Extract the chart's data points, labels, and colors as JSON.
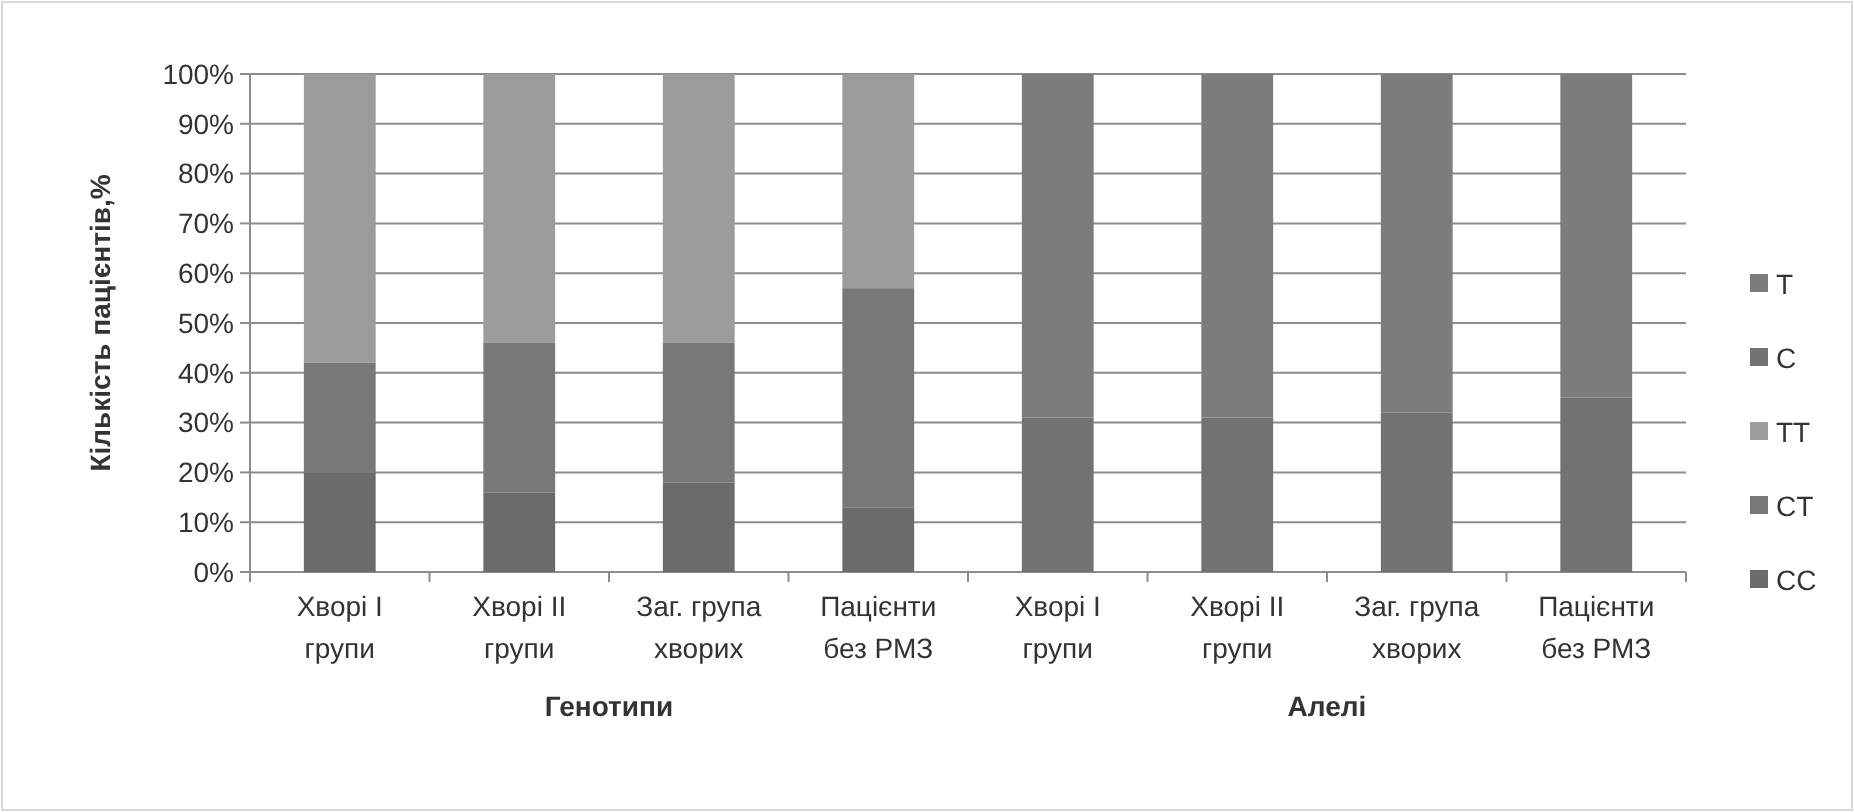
{
  "chart_data": {
    "type": "bar",
    "stacked": true,
    "ylabel": "Кількість пацієнтів,%",
    "categories": [
      "Хворі I\nгрупи",
      "Хворі II\nгрупи",
      "Заг. група\nхворих",
      "Пацієнти\nбез РМЗ",
      "Хворі I\nгрупи",
      "Хворі II\nгрупи",
      "Заг. група\nхворих",
      "Пацієнти\nбез РМЗ"
    ],
    "series": [
      {
        "name": "CC",
        "color": "#6b6b6b",
        "values": [
          20,
          16,
          18,
          13,
          null,
          null,
          null,
          null
        ]
      },
      {
        "name": "CT",
        "color": "#787878",
        "values": [
          22,
          30,
          28,
          44,
          null,
          null,
          null,
          null
        ]
      },
      {
        "name": "TT",
        "color": "#9c9c9c",
        "values": [
          58,
          54,
          54,
          43,
          null,
          null,
          null,
          null
        ]
      },
      {
        "name": "C",
        "color": "#727272",
        "values": [
          null,
          null,
          null,
          null,
          31,
          31,
          32,
          35
        ]
      },
      {
        "name": "T",
        "color": "#7c7c7c",
        "values": [
          null,
          null,
          null,
          null,
          69,
          69,
          68,
          65
        ]
      }
    ],
    "ylim": [
      0,
      100
    ],
    "yticks": [
      {
        "value": 0,
        "label": "0%"
      },
      {
        "value": 10,
        "label": "10%"
      },
      {
        "value": 20,
        "label": "20%"
      },
      {
        "value": 30,
        "label": "30%"
      },
      {
        "value": 40,
        "label": "40%"
      },
      {
        "value": 50,
        "label": "50%"
      },
      {
        "value": 60,
        "label": "60%"
      },
      {
        "value": 70,
        "label": "70%"
      },
      {
        "value": 80,
        "label": "80%"
      },
      {
        "value": 90,
        "label": "90%"
      },
      {
        "value": 100,
        "label": "100%"
      }
    ],
    "grid": "y",
    "legend": "right",
    "annotations": [
      "Генотипи",
      "Алелі"
    ]
  }
}
